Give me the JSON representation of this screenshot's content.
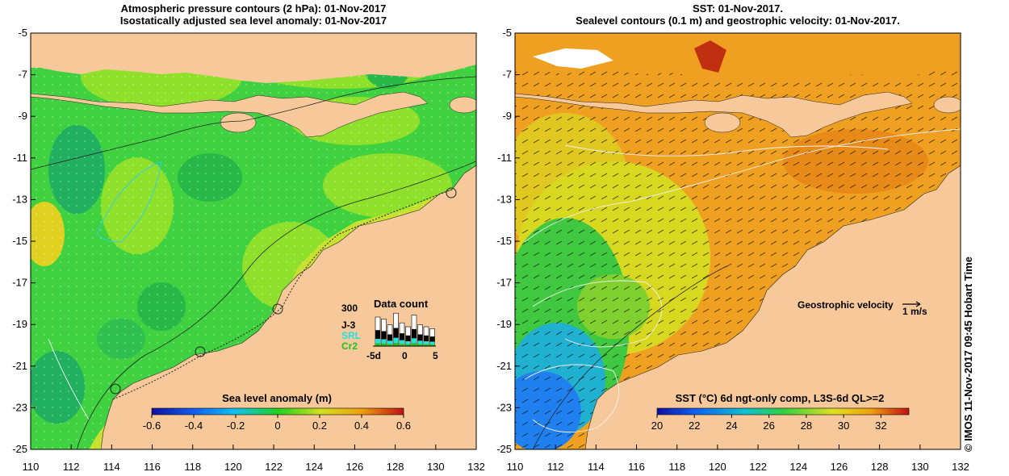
{
  "left_panel": {
    "title_line1": "Atmospheric pressure contours (2 hPa): 01-Nov-2017",
    "title_line2": "Isostatically adjusted sea level anomaly: 01-Nov-2017",
    "y_ticks": [
      "-5",
      "-7",
      "-9",
      "-11",
      "-13",
      "-15",
      "-17",
      "-19",
      "-21",
      "-23",
      "-25"
    ],
    "x_ticks": [
      "110",
      "112",
      "114",
      "116",
      "118",
      "120",
      "122",
      "124",
      "126",
      "128",
      "130",
      "132"
    ],
    "colorbar": {
      "label": "Sea level anomaly (m)",
      "ticks": [
        "-0.6",
        "-0.4",
        "-0.2",
        "0",
        "0.2",
        "0.4",
        "0.6"
      ],
      "range": [
        -0.6,
        0.6
      ]
    },
    "data_count": {
      "title": "Data count",
      "ymax_label": "300",
      "series": [
        "J-3",
        "SRL",
        "Cr2"
      ],
      "series_colors": [
        "#000000",
        "#20e0e0",
        "#20c020"
      ],
      "x_labels": [
        "-5d",
        "0",
        "5"
      ]
    }
  },
  "right_panel": {
    "title_line1": "SST: 01-Nov-2017.",
    "title_line2": "Sealevel contours (0.1 m) and geostrophic velocity: 01-Nov-2017.",
    "y_ticks": [
      "-5",
      "-7",
      "-9",
      "-11",
      "-13",
      "-15",
      "-17",
      "-19",
      "-21",
      "-23",
      "-25"
    ],
    "x_ticks": [
      "110",
      "112",
      "114",
      "116",
      "118",
      "120",
      "122",
      "124",
      "126",
      "128",
      "130",
      "132"
    ],
    "velocity_label": "Geostrophic velocity",
    "velocity_scale": "1 m/s",
    "colorbar": {
      "label": "SST (°C) 6d ngt-only comp, L3S-6d QL>=2",
      "ticks": [
        "20",
        "22",
        "24",
        "26",
        "28",
        "30",
        "32"
      ],
      "range": [
        20,
        33.5
      ]
    }
  },
  "side_credit": "© IMOS 11-Nov-2017 09:45 Hobart Time",
  "colors": {
    "land": "#f7c99a",
    "ocean_green": "#3fd13f",
    "ocean_yellowgreen": "#8ee02a",
    "sst_orange": "#f0a020",
    "sst_blue": "#2080f0"
  }
}
